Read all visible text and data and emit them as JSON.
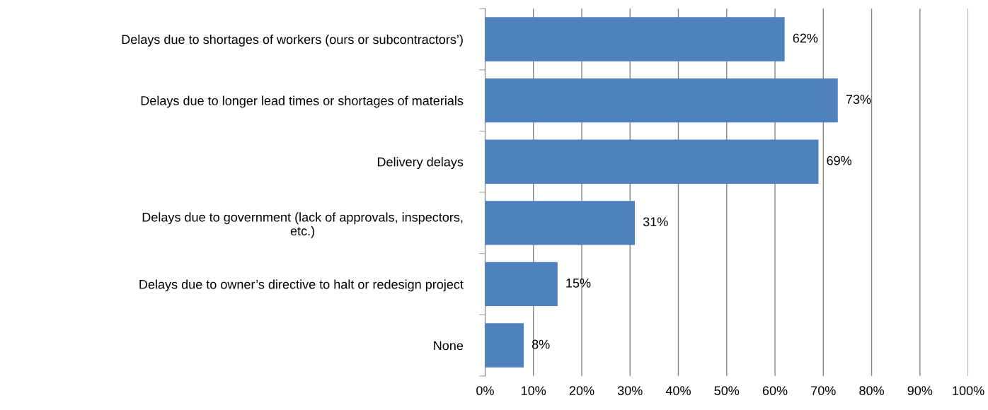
{
  "chart_data": {
    "type": "bar",
    "orientation": "horizontal",
    "categories": [
      "Delays due to shortages of workers (ours or subcontractors’)",
      "Delays due to longer lead times or shortages of materials",
      "Delivery delays",
      "Delays due to government (lack of approvals, inspectors,\netc.)",
      "Delays due to owner’s directive to halt or redesign project",
      "None"
    ],
    "values": [
      62,
      73,
      69,
      31,
      15,
      8
    ],
    "value_labels": [
      "62%",
      "73%",
      "69%",
      "31%",
      "15%",
      "8%"
    ],
    "color": "#4f81bd",
    "xlim": [
      0,
      100
    ],
    "xticks": [
      {
        "value": 0,
        "label": "0%"
      },
      {
        "value": 10,
        "label": "10%"
      },
      {
        "value": 20,
        "label": "20%"
      },
      {
        "value": 30,
        "label": "30%"
      },
      {
        "value": 40,
        "label": "40%"
      },
      {
        "value": 50,
        "label": "50%"
      },
      {
        "value": 60,
        "label": "60%"
      },
      {
        "value": 70,
        "label": "70%"
      },
      {
        "value": 80,
        "label": "80%"
      },
      {
        "value": 90,
        "label": "90%"
      },
      {
        "value": 100,
        "label": "100%"
      }
    ],
    "grid": "x",
    "legend": false
  }
}
